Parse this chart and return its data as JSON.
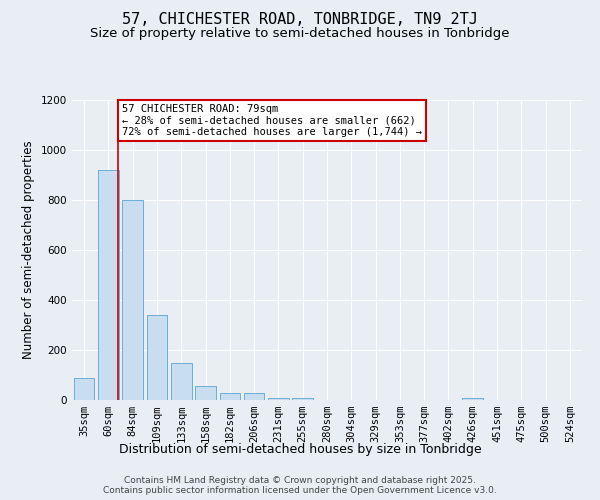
{
  "title": "57, CHICHESTER ROAD, TONBRIDGE, TN9 2TJ",
  "subtitle": "Size of property relative to semi-detached houses in Tonbridge",
  "xlabel": "Distribution of semi-detached houses by size in Tonbridge",
  "ylabel": "Number of semi-detached properties",
  "categories": [
    "35sqm",
    "60sqm",
    "84sqm",
    "109sqm",
    "133sqm",
    "158sqm",
    "182sqm",
    "206sqm",
    "231sqm",
    "255sqm",
    "280sqm",
    "304sqm",
    "329sqm",
    "353sqm",
    "377sqm",
    "402sqm",
    "426sqm",
    "451sqm",
    "475sqm",
    "500sqm",
    "524sqm"
  ],
  "values": [
    90,
    920,
    800,
    340,
    150,
    55,
    30,
    30,
    10,
    10,
    0,
    0,
    0,
    0,
    0,
    0,
    10,
    0,
    0,
    0,
    0
  ],
  "bar_color": "#c8ddf0",
  "bar_edge_color": "#6aaed6",
  "vline_color": "#cc0000",
  "vline_x": 1.4,
  "annotation_text": "57 CHICHESTER ROAD: 79sqm\n← 28% of semi-detached houses are smaller (662)\n72% of semi-detached houses are larger (1,744) →",
  "annotation_box_color": "#ffffff",
  "annotation_box_edge": "#cc0000",
  "ylim": [
    0,
    1200
  ],
  "yticks": [
    0,
    200,
    400,
    600,
    800,
    1000,
    1200
  ],
  "background_color": "#e8eef4",
  "plot_bg_color": "#e8eef4",
  "footer_text": "Contains HM Land Registry data © Crown copyright and database right 2025.\nContains public sector information licensed under the Open Government Licence v3.0.",
  "title_fontsize": 11,
  "subtitle_fontsize": 9.5,
  "xlabel_fontsize": 9,
  "ylabel_fontsize": 8.5,
  "tick_fontsize": 7.5,
  "annotation_fontsize": 7.5,
  "footer_fontsize": 6.5
}
